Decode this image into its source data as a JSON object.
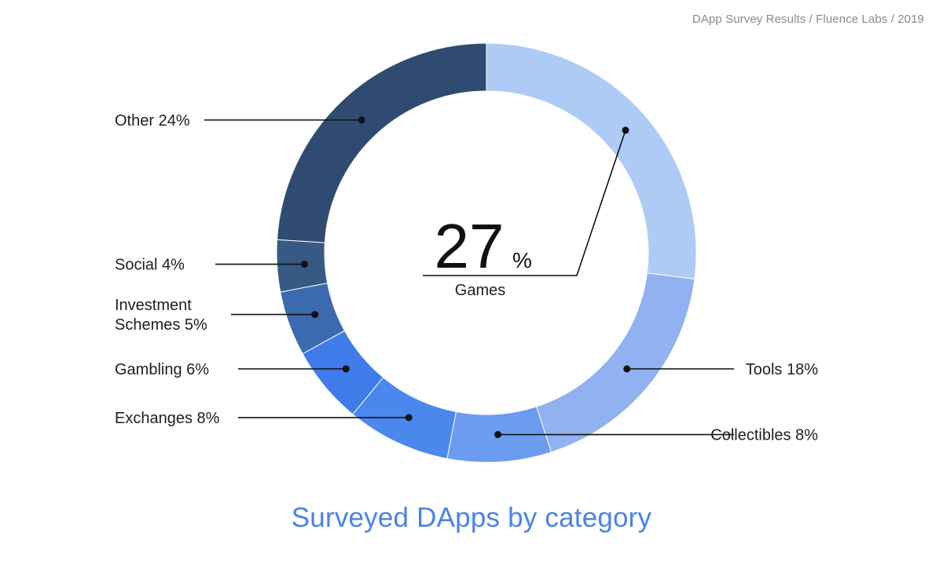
{
  "header": {
    "credit": "DApp Survey Results / Fluence Labs / 2019"
  },
  "chart_data": {
    "type": "pie",
    "style": "donut",
    "title": "Surveyed DApps by category",
    "center": {
      "value": "27",
      "unit": "%",
      "label": "Games"
    },
    "slices": [
      {
        "label": "Games",
        "value": 27,
        "text": "",
        "color": "#aecbf6"
      },
      {
        "label": "Tools",
        "value": 18,
        "text": "Tools 18%",
        "color": "#91b1f0"
      },
      {
        "label": "Collectibles",
        "value": 8,
        "text": "Collectibles 8%",
        "color": "#6b9cf0"
      },
      {
        "label": "Exchanges",
        "value": 8,
        "text": "Exchanges 8%",
        "color": "#4b88ee"
      },
      {
        "label": "Gambling",
        "value": 6,
        "text": "Gambling 6%",
        "color": "#3f7be9"
      },
      {
        "label": "Investment Schemes",
        "value": 5,
        "text": "Investment Schemes 5%",
        "text_lines": [
          "Investment",
          "Schemes 5%"
        ],
        "color": "#3b6aaf"
      },
      {
        "label": "Social",
        "value": 4,
        "text": "Social 4%",
        "color": "#365a84"
      },
      {
        "label": "Other",
        "value": 24,
        "text": "Other 24%",
        "color": "#304b72"
      }
    ]
  }
}
